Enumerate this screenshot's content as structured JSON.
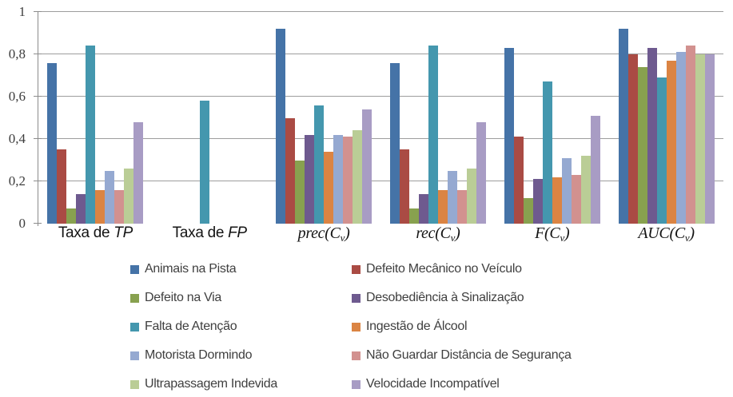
{
  "chart_data": {
    "type": "bar",
    "title": "",
    "xlabel": "",
    "ylabel": "",
    "ylim": [
      0,
      1
    ],
    "grid": true,
    "decimal_separator": ",",
    "legend_position": "bottom",
    "y_ticks": [
      "1",
      "0,8",
      "0,6",
      "0,4",
      "0,2",
      "0"
    ],
    "categories": [
      "Taxa de TP",
      "Taxa de FP",
      "prec(Cv)",
      "rec(Cv)",
      "F(Cv)",
      "AUC(Cv)"
    ],
    "categories_display": [
      {
        "plain": "Taxa de ",
        "italic": "TP"
      },
      {
        "plain": "Taxa de ",
        "italic": "FP"
      },
      {
        "fn": "prec",
        "arg": "C",
        "sub": "v"
      },
      {
        "fn": "rec",
        "arg": "C",
        "sub": "v"
      },
      {
        "fn": "F",
        "arg": "C",
        "sub": "v"
      },
      {
        "fn": "AUC",
        "arg": "C",
        "sub": "v"
      }
    ],
    "series": [
      {
        "name": "Animais na Pista",
        "color": "#4573A7",
        "values": [
          0.76,
          0,
          0.92,
          0.76,
          0.83,
          0.92
        ]
      },
      {
        "name": "Defeito Mecânico no Veículo",
        "color": "#AA4B44",
        "values": [
          0.35,
          0,
          0.5,
          0.35,
          0.41,
          0.8
        ]
      },
      {
        "name": "Defeito na Via",
        "color": "#88A14F",
        "values": [
          0.07,
          0,
          0.3,
          0.07,
          0.12,
          0.74
        ]
      },
      {
        "name": "Desobediência à Sinalização",
        "color": "#6E5A8F",
        "values": [
          0.14,
          0,
          0.42,
          0.14,
          0.21,
          0.83
        ]
      },
      {
        "name": "Falta de Atenção",
        "color": "#4497AE",
        "values": [
          0.84,
          0.58,
          0.56,
          0.84,
          0.67,
          0.69
        ]
      },
      {
        "name": "Ingestão de Álcool",
        "color": "#DB8443",
        "values": [
          0.16,
          0,
          0.34,
          0.16,
          0.22,
          0.77
        ]
      },
      {
        "name": "Motorista Dormindo",
        "color": "#95A9D1",
        "values": [
          0.25,
          0,
          0.42,
          0.25,
          0.31,
          0.81
        ]
      },
      {
        "name": "Não Guardar Distância de Segurança",
        "color": "#D2918F",
        "values": [
          0.16,
          0,
          0.41,
          0.16,
          0.23,
          0.84
        ]
      },
      {
        "name": "Ultrapassagem Indevida",
        "color": "#BACD96",
        "values": [
          0.26,
          0,
          0.44,
          0.26,
          0.32,
          0.8
        ]
      },
      {
        "name": "Velocidade Incompatível",
        "color": "#A89CC4",
        "values": [
          0.48,
          0,
          0.54,
          0.48,
          0.51,
          0.8
        ]
      }
    ]
  }
}
